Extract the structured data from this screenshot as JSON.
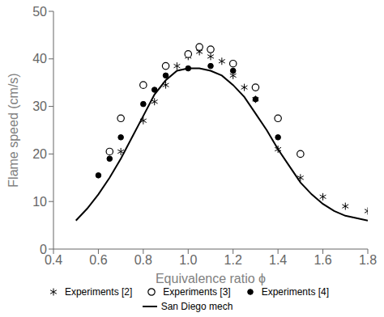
{
  "chart_data": {
    "type": "scatter",
    "xlabel": "Equivalence ratio ϕ",
    "ylabel": "Flame speed (cm/s)",
    "xlim": [
      0.4,
      1.8
    ],
    "ylim": [
      0,
      50
    ],
    "xticks": [
      0.4,
      0.6,
      0.8,
      {
        "value": 1.0,
        "label": "1.0"
      },
      1.2,
      1.4,
      1.6,
      1.8
    ],
    "yticks": [
      0,
      10,
      20,
      30,
      40,
      50
    ],
    "grid": false,
    "legend": "bottom",
    "series": [
      {
        "name": "Experiments [2]",
        "type": "scatter",
        "marker": "asterisk",
        "color": "black",
        "x": [
          0.7,
          0.8,
          0.85,
          0.9,
          0.95,
          1.0,
          1.05,
          1.1,
          1.15,
          1.2,
          1.25,
          1.3,
          1.4,
          1.5,
          1.6,
          1.7,
          1.8
        ],
        "values": [
          20.5,
          27.0,
          31.0,
          34.5,
          38.5,
          40.5,
          41.5,
          40.5,
          39.5,
          36.5,
          34.0,
          31.5,
          21.0,
          15.0,
          11.0,
          9.0,
          8.0
        ]
      },
      {
        "name": "Experiments [3]",
        "type": "scatter",
        "marker": "circle_open",
        "color": "black",
        "x": [
          0.65,
          0.7,
          0.8,
          0.9,
          1.0,
          1.05,
          1.1,
          1.2,
          1.3,
          1.4,
          1.5
        ],
        "values": [
          20.5,
          27.5,
          34.5,
          38.5,
          41.0,
          42.5,
          42.0,
          39.0,
          34.0,
          27.5,
          20.0
        ]
      },
      {
        "name": "Experiments [4]",
        "type": "scatter",
        "marker": "circle",
        "color": "black",
        "x": [
          0.6,
          0.65,
          0.7,
          0.8,
          0.85,
          0.9,
          1.0,
          1.1,
          1.2,
          1.3,
          1.4
        ],
        "values": [
          15.5,
          19.0,
          23.5,
          30.5,
          33.5,
          36.5,
          38.0,
          38.5,
          37.5,
          31.5,
          23.5
        ]
      },
      {
        "name": "San Diego mech",
        "type": "line",
        "line_style": "solid",
        "color": "black",
        "x": [
          0.5,
          0.55,
          0.6,
          0.65,
          0.7,
          0.75,
          0.8,
          0.85,
          0.9,
          0.95,
          1.0,
          1.05,
          1.1,
          1.15,
          1.2,
          1.25,
          1.3,
          1.35,
          1.4,
          1.45,
          1.5,
          1.55,
          1.6,
          1.65,
          1.7,
          1.75,
          1.8
        ],
        "values": [
          6.0,
          8.5,
          11.5,
          15.0,
          19.0,
          23.5,
          28.0,
          32.5,
          35.5,
          37.5,
          38.0,
          38.0,
          37.5,
          36.5,
          34.5,
          32.0,
          28.5,
          25.0,
          21.0,
          17.5,
          14.0,
          11.5,
          9.5,
          8.0,
          7.0,
          6.5,
          6.0
        ]
      }
    ]
  }
}
